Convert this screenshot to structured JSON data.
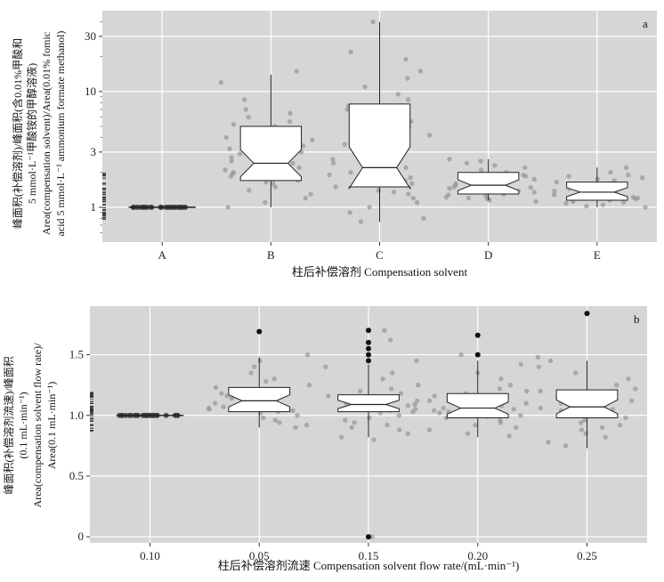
{
  "chart_data": [
    {
      "panel": "a",
      "type": "boxplot",
      "xlabel": "柱后补偿溶剂 Compensation solvent",
      "ylabel_lines": [
        "峰面积(补偿溶剂)/峰面积(含0.01%甲酸和",
        "5 mmol·L⁻¹甲酸铵的甲醇溶液)",
        "Area(compensation solvent)/Area(0.01% fomic",
        "acid 5 mmol·L⁻¹ ammonium formate methanol)"
      ],
      "y_scale": "log",
      "ylim": [
        0.5,
        50
      ],
      "yticks": [
        1,
        3,
        10,
        30
      ],
      "ytick_labels": [
        "1",
        "3",
        "10",
        "30"
      ],
      "grid": true,
      "categories": [
        "A",
        "B",
        "C",
        "D",
        "E"
      ],
      "boxes": [
        {
          "min": 1.0,
          "q1": 1.0,
          "median": 1.0,
          "q3": 1.0,
          "max": 1.0
        },
        {
          "min": 1.0,
          "q1": 1.7,
          "median": 2.4,
          "q3": 5.0,
          "max": 14.0
        },
        {
          "min": 0.75,
          "q1": 1.5,
          "median": 2.2,
          "q3": 7.8,
          "max": 40.0
        },
        {
          "min": 1.15,
          "q1": 1.3,
          "median": 1.55,
          "q3": 2.0,
          "max": 2.6
        },
        {
          "min": 1.0,
          "q1": 1.15,
          "median": 1.35,
          "q3": 1.65,
          "max": 2.2
        }
      ],
      "outliers": [],
      "jitter_points": [
        [
          1.0,
          1.0,
          1.0,
          1.0,
          1.0,
          1.0,
          1.0,
          1.0,
          1.0,
          1.0,
          1.0,
          1.0,
          1.0,
          1.0,
          1.0,
          1.0,
          1.0,
          1.0,
          1.0,
          1.0,
          1.0,
          1.0,
          1.0,
          1.0,
          1.0,
          1.0,
          1.0,
          1.0,
          1.0,
          1.0
        ],
        [
          15,
          12,
          8.5,
          7,
          6.5,
          6,
          5.5,
          5.2,
          5,
          4.8,
          4.5,
          4.2,
          4,
          3.8,
          3.6,
          3.4,
          3.2,
          3,
          2.9,
          2.8,
          2.7,
          2.6,
          2.5,
          2.4,
          2.3,
          2.2,
          2.1,
          2,
          1.95,
          1.9,
          1.85,
          1.8,
          1.75,
          1.7,
          1.65,
          1.6,
          1.5,
          1.4,
          1.3,
          1.2,
          1.1,
          1.0
        ],
        [
          40,
          22,
          19,
          15,
          13,
          11,
          9.5,
          8.5,
          7.5,
          7,
          6.5,
          6,
          5.5,
          5,
          4.5,
          4.2,
          4,
          3.8,
          3.5,
          3.2,
          3,
          2.8,
          2.6,
          2.5,
          2.4,
          2.3,
          2.2,
          2.1,
          2,
          1.9,
          1.8,
          1.7,
          1.6,
          1.5,
          1.4,
          1.35,
          1.3,
          1.2,
          1.1,
          1.0,
          0.9,
          0.8,
          0.75
        ],
        [
          2.6,
          2.5,
          2.4,
          2.3,
          2.2,
          2.1,
          2.0,
          1.95,
          1.9,
          1.85,
          1.8,
          1.75,
          1.7,
          1.65,
          1.6,
          1.55,
          1.5,
          1.48,
          1.45,
          1.42,
          1.4,
          1.38,
          1.35,
          1.32,
          1.3,
          1.28,
          1.25,
          1.22,
          1.2,
          1.18,
          1.15,
          1.12
        ],
        [
          2.2,
          2.0,
          1.9,
          1.85,
          1.8,
          1.75,
          1.7,
          1.65,
          1.6,
          1.55,
          1.5,
          1.45,
          1.42,
          1.4,
          1.38,
          1.35,
          1.32,
          1.3,
          1.28,
          1.25,
          1.22,
          1.2,
          1.18,
          1.15,
          1.12,
          1.1,
          1.08,
          1.05,
          1.02,
          1.0
        ]
      ]
    },
    {
      "panel": "b",
      "type": "boxplot",
      "xlabel": "柱后补偿溶剂流速 Compensation solvent flow rate/(mL·min⁻¹)",
      "ylabel_lines": [
        "峰面积(补偿溶剂流速)/峰面积",
        "(0.1 mL·min⁻¹)",
        "Area(compensation solvent flow rate)/",
        "Area(0.1 mL·min⁻¹)"
      ],
      "y_scale": "linear",
      "ylim": [
        -0.05,
        1.9
      ],
      "yticks": [
        0,
        0.5,
        1.0,
        1.5
      ],
      "ytick_labels": [
        "0",
        "0.5",
        "1.0",
        "1.5"
      ],
      "grid": true,
      "categories": [
        "0.10",
        "0.05",
        "0.15",
        "0.20",
        "0.25"
      ],
      "boxes": [
        {
          "min": 1.0,
          "q1": 1.0,
          "median": 1.0,
          "q3": 1.0,
          "max": 1.0
        },
        {
          "min": 0.9,
          "q1": 1.03,
          "median": 1.12,
          "q3": 1.23,
          "max": 1.48
        },
        {
          "min": 0.82,
          "q1": 1.03,
          "median": 1.09,
          "q3": 1.17,
          "max": 1.42
        },
        {
          "min": 0.82,
          "q1": 0.98,
          "median": 1.06,
          "q3": 1.18,
          "max": 1.45
        },
        {
          "min": 0.73,
          "q1": 0.98,
          "median": 1.07,
          "q3": 1.21,
          "max": 1.45
        }
      ],
      "outliers": [
        [],
        [
          1.69
        ],
        [
          1.7,
          1.6,
          1.55,
          1.5,
          1.45,
          0.0
        ],
        [
          1.66,
          1.5
        ],
        [
          1.84
        ]
      ],
      "jitter_points": [
        [
          1.0,
          1.0,
          1.0,
          1.0,
          1.0,
          1.0,
          1.0,
          1.0,
          1.0,
          1.0,
          1.0,
          1.0,
          1.0,
          1.0,
          1.0,
          1.0,
          1.0,
          1.0,
          1.0,
          1.0,
          1.0,
          1.0,
          1.0,
          1.0,
          1.0,
          1.0,
          1.0,
          1.0,
          1.0,
          1.0
        ],
        [
          1.5,
          1.45,
          1.4,
          1.35,
          1.3,
          1.28,
          1.25,
          1.23,
          1.2,
          1.18,
          1.16,
          1.15,
          1.14,
          1.12,
          1.1,
          1.08,
          1.07,
          1.06,
          1.05,
          1.04,
          1.03,
          1.02,
          1.0,
          0.98,
          0.96,
          0.94,
          0.92,
          0.9
        ],
        [
          1.7,
          1.62,
          1.45,
          1.4,
          1.35,
          1.3,
          1.25,
          1.22,
          1.2,
          1.18,
          1.16,
          1.14,
          1.12,
          1.1,
          1.09,
          1.08,
          1.07,
          1.06,
          1.05,
          1.04,
          1.03,
          1.02,
          1.0,
          0.98,
          0.96,
          0.94,
          0.92,
          0.9,
          0.88,
          0.85,
          0.82,
          0.8,
          0.0
        ],
        [
          1.5,
          1.42,
          1.35,
          1.3,
          1.25,
          1.22,
          1.2,
          1.18,
          1.16,
          1.14,
          1.12,
          1.1,
          1.08,
          1.06,
          1.05,
          1.04,
          1.03,
          1.02,
          1.0,
          0.99,
          0.98,
          0.96,
          0.94,
          0.92,
          0.9,
          0.88,
          0.85,
          0.83
        ],
        [
          1.48,
          1.45,
          1.4,
          1.35,
          1.3,
          1.25,
          1.22,
          1.2,
          1.18,
          1.15,
          1.12,
          1.1,
          1.08,
          1.06,
          1.05,
          1.04,
          1.02,
          1.0,
          0.98,
          0.96,
          0.94,
          0.92,
          0.9,
          0.88,
          0.85,
          0.82,
          0.78,
          0.75
        ]
      ]
    }
  ]
}
